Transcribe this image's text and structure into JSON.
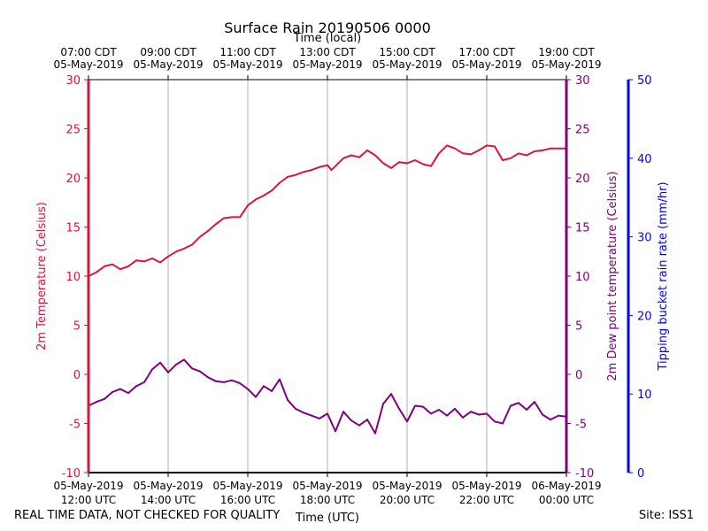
{
  "chart_data": {
    "type": "line",
    "title": "Surface Rain 20190506 0000",
    "top_axis_label": "Time (local)",
    "xlabel": "Time (UTC)",
    "x_range_hours_utc": [
      12,
      24
    ],
    "x_ticks_utc": [
      {
        "hour": 12,
        "line1": "05-May-2019",
        "line2": "12:00 UTC"
      },
      {
        "hour": 14,
        "line1": "05-May-2019",
        "line2": "14:00 UTC"
      },
      {
        "hour": 16,
        "line1": "05-May-2019",
        "line2": "16:00 UTC"
      },
      {
        "hour": 18,
        "line1": "05-May-2019",
        "line2": "18:00 UTC"
      },
      {
        "hour": 20,
        "line1": "05-May-2019",
        "line2": "20:00 UTC"
      },
      {
        "hour": 22,
        "line1": "05-May-2019",
        "line2": "22:00 UTC"
      },
      {
        "hour": 24,
        "line1": "06-May-2019",
        "line2": "00:00 UTC"
      }
    ],
    "x_ticks_local": [
      {
        "hour": 12,
        "line1": "07:00 CDT",
        "line2": "05-May-2019"
      },
      {
        "hour": 14,
        "line1": "09:00 CDT",
        "line2": "05-May-2019"
      },
      {
        "hour": 16,
        "line1": "11:00 CDT",
        "line2": "05-May-2019"
      },
      {
        "hour": 18,
        "line1": "13:00 CDT",
        "line2": "05-May-2019"
      },
      {
        "hour": 20,
        "line1": "15:00 CDT",
        "line2": "05-May-2019"
      },
      {
        "hour": 22,
        "line1": "17:00 CDT",
        "line2": "05-May-2019"
      },
      {
        "hour": 24,
        "line1": "19:00 CDT",
        "line2": "05-May-2019"
      }
    ],
    "axes": {
      "temperature": {
        "label": "2m Temperature (Celsius)",
        "ylim": [
          -10,
          30
        ],
        "ticks": [
          -10,
          -5,
          0,
          5,
          10,
          15,
          20,
          25,
          30
        ],
        "color": "#dc143c"
      },
      "dewpoint": {
        "label": "2m Dew point temperature (Celsius)",
        "ylim": [
          -10,
          30
        ],
        "ticks": [
          -10,
          -5,
          0,
          5,
          10,
          15,
          20,
          25,
          30
        ],
        "color": "#800080"
      },
      "rain": {
        "label": "Tipping bucket rain rate (mm/hr)",
        "ylim": [
          0,
          50
        ],
        "ticks": [
          0,
          10,
          20,
          30,
          40,
          50
        ],
        "color": "#0000ff"
      }
    },
    "series": [
      {
        "name": "2m Temperature",
        "axis": "temperature",
        "color": "#dc143c",
        "x": [
          12.0,
          12.2,
          12.4,
          12.6,
          12.8,
          13.0,
          13.2,
          13.4,
          13.6,
          13.8,
          14.0,
          14.2,
          14.4,
          14.6,
          14.8,
          15.0,
          15.2,
          15.4,
          15.6,
          15.8,
          16.0,
          16.2,
          16.4,
          16.6,
          16.8,
          17.0,
          17.2,
          17.4,
          17.6,
          17.8,
          18.0,
          18.1,
          18.2,
          18.4,
          18.6,
          18.8,
          19.0,
          19.2,
          19.4,
          19.6,
          19.8,
          20.0,
          20.2,
          20.4,
          20.6,
          20.8,
          21.0,
          21.2,
          21.4,
          21.6,
          21.8,
          22.0,
          22.2,
          22.4,
          22.6,
          22.8,
          23.0,
          23.2,
          23.4,
          23.6,
          23.8,
          24.0
        ],
        "values": [
          10.0,
          10.4,
          11.0,
          11.2,
          10.7,
          11.0,
          11.6,
          11.5,
          11.8,
          11.4,
          12.0,
          12.5,
          12.8,
          13.2,
          14.0,
          14.6,
          15.3,
          15.9,
          16.0,
          16.0,
          17.2,
          17.8,
          18.2,
          18.7,
          19.5,
          20.1,
          20.3,
          20.6,
          20.8,
          21.1,
          21.3,
          20.8,
          21.2,
          22.0,
          22.3,
          22.1,
          22.8,
          22.3,
          21.5,
          21.0,
          21.6,
          21.5,
          21.8,
          21.4,
          21.2,
          22.5,
          23.3,
          23.0,
          22.5,
          22.4,
          22.8,
          23.3,
          23.2,
          21.8,
          22.0,
          22.5,
          22.3,
          22.7,
          22.8,
          23.0,
          23.0,
          23.0
        ]
      },
      {
        "name": "2m Dew point temperature",
        "axis": "dewpoint",
        "color": "#800080",
        "x": [
          12.0,
          12.2,
          12.4,
          12.6,
          12.8,
          13.0,
          13.2,
          13.4,
          13.6,
          13.8,
          14.0,
          14.2,
          14.4,
          14.6,
          14.8,
          15.0,
          15.2,
          15.4,
          15.6,
          15.8,
          16.0,
          16.2,
          16.4,
          16.6,
          16.8,
          17.0,
          17.2,
          17.4,
          17.6,
          17.8,
          18.0,
          18.2,
          18.4,
          18.6,
          18.8,
          19.0,
          19.2,
          19.4,
          19.6,
          19.8,
          20.0,
          20.2,
          20.4,
          20.6,
          20.8,
          21.0,
          21.2,
          21.4,
          21.6,
          21.8,
          22.0,
          22.2,
          22.4,
          22.6,
          22.8,
          23.0,
          23.2,
          23.4,
          23.6,
          23.8,
          24.0
        ],
        "values": [
          -3.2,
          -2.8,
          -2.5,
          -1.8,
          -1.5,
          -1.9,
          -1.2,
          -0.8,
          0.5,
          1.2,
          0.2,
          1.0,
          1.5,
          0.6,
          0.3,
          -0.3,
          -0.7,
          -0.8,
          -0.6,
          -0.9,
          -1.5,
          -2.3,
          -1.2,
          -1.7,
          -0.5,
          -2.6,
          -3.5,
          -3.9,
          -4.2,
          -4.5,
          -4.0,
          -5.8,
          -3.8,
          -4.7,
          -5.2,
          -4.6,
          -6.0,
          -3.0,
          -2.0,
          -3.5,
          -4.8,
          -3.2,
          -3.3,
          -4.0,
          -3.6,
          -4.2,
          -3.5,
          -4.4,
          -3.8,
          -4.1,
          -4.0,
          -4.8,
          -5.0,
          -3.2,
          -2.9,
          -3.6,
          -2.8,
          -4.1,
          -4.6,
          -4.2,
          -4.3
        ]
      },
      {
        "name": "Tipping bucket rain rate",
        "axis": "rain",
        "color": "#0000ff",
        "x": [
          12.0,
          24.0
        ],
        "values": [
          0,
          0
        ]
      }
    ]
  },
  "footer": {
    "disclaimer": "REAL TIME DATA, NOT CHECKED FOR QUALITY",
    "site": "Site: ISS1"
  }
}
